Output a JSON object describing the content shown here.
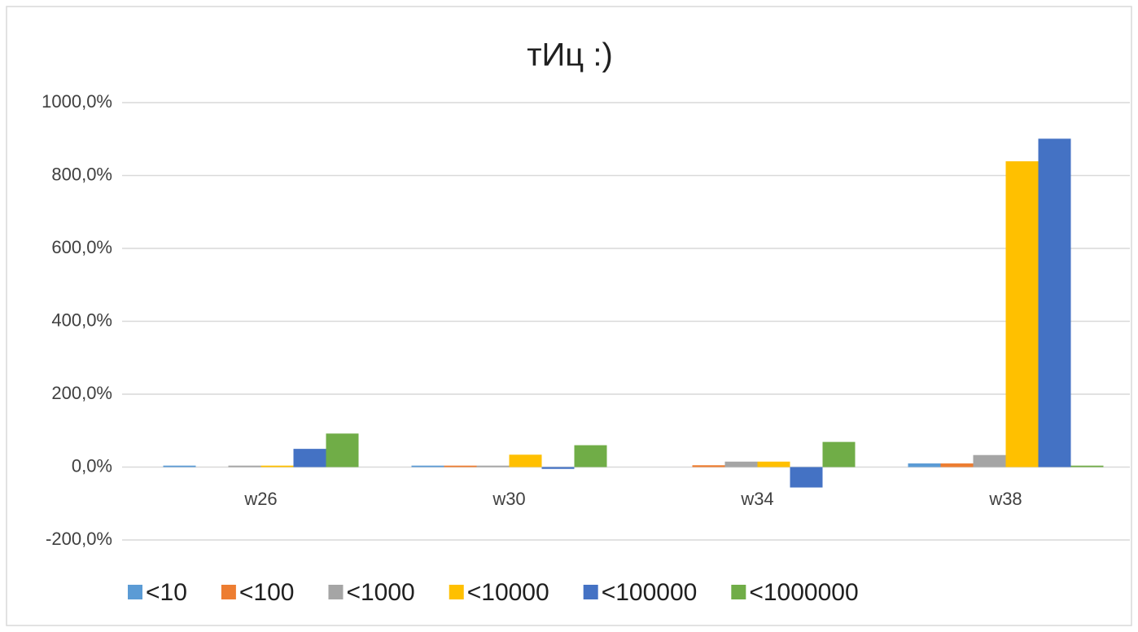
{
  "chart_data": {
    "type": "bar",
    "title": "тИц :)",
    "categories": [
      "w26",
      "w30",
      "w34",
      "w38"
    ],
    "series": [
      {
        "name": "<10",
        "color": "#5b9bd5",
        "values": [
          4,
          4,
          0,
          10
        ]
      },
      {
        "name": "<100",
        "color": "#ed7d31",
        "values": [
          0,
          4,
          5,
          10
        ]
      },
      {
        "name": "<1000",
        "color": "#a5a5a5",
        "values": [
          4,
          4,
          15,
          33
        ]
      },
      {
        "name": "<10000",
        "color": "#ffc000",
        "values": [
          4,
          34,
          15,
          839
        ]
      },
      {
        "name": "<100000",
        "color": "#4472c4",
        "values": [
          50,
          -5,
          -56,
          901
        ]
      },
      {
        "name": "<1000000",
        "color": "#70ad47",
        "values": [
          92,
          60,
          69,
          4
        ]
      }
    ],
    "ylim": [
      -200,
      1000
    ],
    "yticks": [
      {
        "value": -200,
        "label": "-200,0%"
      },
      {
        "value": 0,
        "label": "0,0%"
      },
      {
        "value": 200,
        "label": "200,0%"
      },
      {
        "value": 400,
        "label": "400,0%"
      },
      {
        "value": 600,
        "label": "600,0%"
      },
      {
        "value": 800,
        "label": "800,0%"
      },
      {
        "value": 1000,
        "label": "1000,0%"
      }
    ],
    "grid": true,
    "legend": "bottom"
  }
}
